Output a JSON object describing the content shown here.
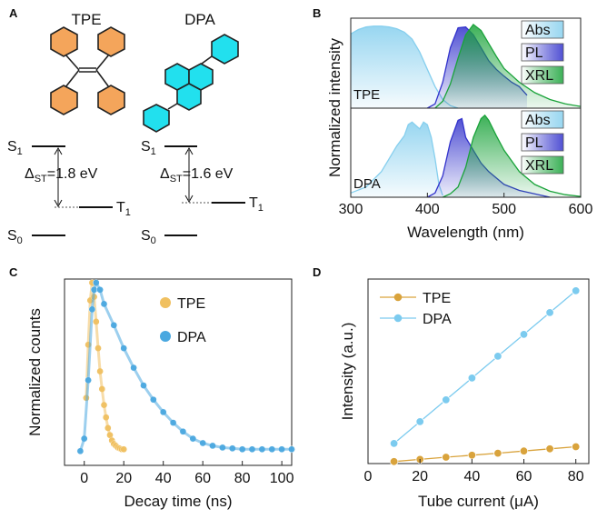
{
  "panels": {
    "a": {
      "letter": "A",
      "molecules": [
        "TPE",
        "DPA"
      ],
      "tpe": {
        "s1": "S",
        "s1_sub": "1",
        "s0": "S",
        "s0_sub": "0",
        "t1": "T",
        "t1_sub": "1",
        "gap_delta": "Δ",
        "gap_sub": "ST",
        "gap_value": "=1.8 eV"
      },
      "dpa": {
        "s1": "S",
        "s1_sub": "1",
        "s0": "S",
        "s0_sub": "0",
        "t1": "T",
        "t1_sub": "1",
        "gap_delta": "Δ",
        "gap_sub": "ST",
        "gap_value": "=1.6 eV"
      },
      "colors": {
        "tpe_ring": "#f4a55b",
        "dpa_ring": "#22e0ee"
      }
    },
    "b": {
      "letter": "B"
    },
    "c": {
      "letter": "C"
    },
    "d": {
      "letter": "D"
    }
  },
  "chart_data": [
    {
      "panel": "B",
      "type": "area",
      "xlabel": "Wavelength (nm)",
      "ylabel": "Normalized intensity",
      "xlim": [
        300,
        600
      ],
      "xticks": [
        300,
        400,
        500,
        600
      ],
      "subplots": [
        {
          "label": "TPE",
          "legend": [
            "Abs",
            "PL",
            "XRL"
          ],
          "series": [
            {
              "name": "Abs",
              "color": "#86cfee",
              "x": [
                300,
                310,
                320,
                330,
                340,
                350,
                360,
                370,
                380,
                390,
                400,
                410,
                420,
                430,
                440
              ],
              "y": [
                0.86,
                0.91,
                0.94,
                0.95,
                0.95,
                0.94,
                0.92,
                0.88,
                0.8,
                0.65,
                0.45,
                0.25,
                0.1,
                0.03,
                0.0
              ]
            },
            {
              "name": "PL",
              "color": "#3333cc",
              "x": [
                400,
                410,
                420,
                430,
                440,
                450,
                460,
                470,
                480,
                490,
                500,
                510,
                520,
                530
              ],
              "y": [
                0.0,
                0.05,
                0.3,
                0.7,
                0.93,
                0.94,
                0.85,
                0.7,
                0.55,
                0.45,
                0.37,
                0.3,
                0.25,
                0.15
              ]
            },
            {
              "name": "XRL",
              "color": "#1aa33a",
              "x": [
                410,
                420,
                430,
                440,
                450,
                460,
                470,
                480,
                490,
                500,
                520,
                540,
                560,
                580,
                600
              ],
              "y": [
                0.0,
                0.08,
                0.28,
                0.58,
                0.85,
                0.97,
                0.9,
                0.75,
                0.6,
                0.46,
                0.3,
                0.18,
                0.1,
                0.05,
                0.02
              ]
            }
          ]
        },
        {
          "label": "DPA",
          "legend": [
            "Abs",
            "PL",
            "XRL"
          ],
          "series": [
            {
              "name": "Abs",
              "color": "#86cfee",
              "x": [
                300,
                320,
                340,
                350,
                360,
                370,
                375,
                380,
                390,
                395,
                400,
                405,
                410,
                415,
                420
              ],
              "y": [
                0.05,
                0.12,
                0.3,
                0.45,
                0.6,
                0.72,
                0.85,
                0.88,
                0.8,
                0.88,
                0.85,
                0.7,
                0.45,
                0.15,
                0.02
              ]
            },
            {
              "name": "PL",
              "color": "#3333cc",
              "x": [
                400,
                410,
                420,
                430,
                440,
                445,
                450,
                460,
                470,
                480,
                500,
                520,
                550,
                560
              ],
              "y": [
                0.0,
                0.05,
                0.25,
                0.65,
                0.9,
                0.92,
                0.7,
                0.55,
                0.4,
                0.3,
                0.15,
                0.08,
                0.02,
                0.0
              ]
            },
            {
              "name": "XRL",
              "color": "#1aa33a",
              "x": [
                420,
                430,
                440,
                450,
                460,
                470,
                475,
                480,
                490,
                500,
                520,
                540,
                560,
                580,
                600
              ],
              "y": [
                0.0,
                0.04,
                0.12,
                0.35,
                0.7,
                0.92,
                0.96,
                0.9,
                0.72,
                0.55,
                0.3,
                0.15,
                0.07,
                0.03,
                0.01
              ]
            }
          ]
        }
      ]
    },
    {
      "panel": "C",
      "type": "scatter",
      "xlabel": "Decay time (ns)",
      "ylabel": "Normalized counts",
      "xlim": [
        -10,
        105
      ],
      "xticks": [
        0,
        20,
        40,
        60,
        80,
        100
      ],
      "legend": "right",
      "series": [
        {
          "name": "TPE",
          "color": "#f0c060",
          "x": [
            1,
            2,
            3,
            4,
            5,
            6,
            7,
            8,
            9,
            10,
            11,
            12,
            13,
            14,
            15,
            16,
            17,
            18,
            19,
            20
          ],
          "y": [
            0.35,
            0.65,
            0.9,
            1.0,
            0.92,
            0.78,
            0.63,
            0.5,
            0.4,
            0.31,
            0.24,
            0.18,
            0.14,
            0.11,
            0.09,
            0.08,
            0.07,
            0.065,
            0.06,
            0.06
          ]
        },
        {
          "name": "DPA",
          "color": "#4aa8e0",
          "x": [
            -2,
            0,
            2,
            4,
            5,
            6,
            8,
            10,
            15,
            20,
            25,
            30,
            35,
            40,
            45,
            50,
            55,
            60,
            65,
            70,
            75,
            80,
            85,
            90,
            95,
            100,
            105
          ],
          "y": [
            0.05,
            0.12,
            0.45,
            0.85,
            0.96,
            1.0,
            0.96,
            0.88,
            0.76,
            0.63,
            0.52,
            0.42,
            0.34,
            0.27,
            0.21,
            0.16,
            0.12,
            0.095,
            0.08,
            0.07,
            0.065,
            0.06,
            0.06,
            0.06,
            0.06,
            0.06,
            0.06
          ]
        }
      ]
    },
    {
      "panel": "D",
      "type": "line",
      "xlabel": "Tube current (μA)",
      "ylabel": "Intensity (a.u.)",
      "xlim": [
        0,
        85
      ],
      "ylim": [
        0,
        1.1
      ],
      "xticks": [
        0,
        20,
        40,
        60,
        80
      ],
      "legend": "top-left",
      "x": [
        10,
        20,
        30,
        40,
        50,
        60,
        70,
        80
      ],
      "series": [
        {
          "name": "TPE",
          "color": "#d9a33c",
          "values": [
            0.012,
            0.025,
            0.038,
            0.05,
            0.062,
            0.075,
            0.088,
            0.1
          ]
        },
        {
          "name": "DPA",
          "color": "#7ccbef",
          "values": [
            0.12,
            0.25,
            0.38,
            0.51,
            0.64,
            0.77,
            0.9,
            1.03
          ]
        }
      ]
    }
  ]
}
